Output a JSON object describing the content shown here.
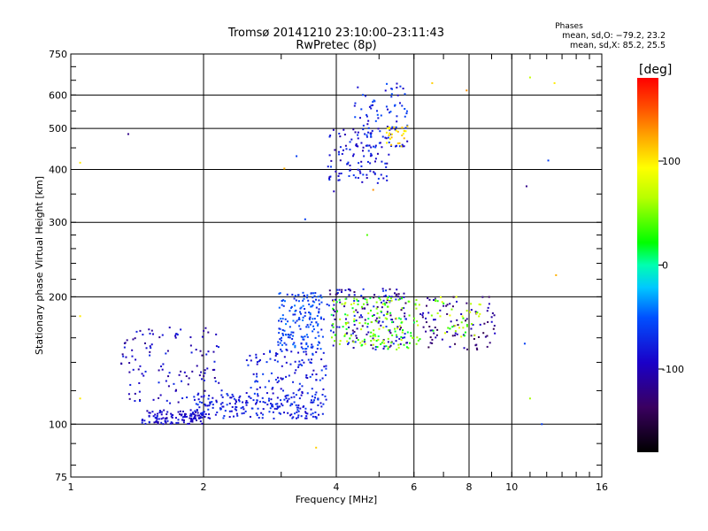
{
  "chart_data": {
    "type": "scatter",
    "title": "Tromsø 20141210 23:10:00–23:11:43",
    "subtitle": "RwPretec (8p)",
    "xlabel": "Frequency [MHz]",
    "ylabel": "Stationary phase Virtual Height [km]",
    "x_scale": "log",
    "y_scale": "log",
    "xlim": [
      1,
      16
    ],
    "ylim": [
      75,
      750
    ],
    "x_ticks": [
      1,
      2,
      4,
      6,
      8,
      10,
      16
    ],
    "y_ticks": [
      75,
      100,
      200,
      300,
      400,
      500,
      600,
      750
    ],
    "grid": true,
    "phase_box": {
      "title": "Phases",
      "line_o": "mean, sd,O: −79.2, 23.2",
      "line_x": "mean, sd,X: 85.2, 25.5"
    },
    "colorbar": {
      "label": "[deg]",
      "range": [
        -180,
        180
      ],
      "ticks": [
        100,
        0,
        -100
      ]
    },
    "clusters": [
      {
        "x": [
          1.45,
          2.0
        ],
        "y": [
          100,
          108
        ],
        "phase": [
          -110,
          -75
        ],
        "n": 120
      },
      {
        "x": [
          1.9,
          3.8
        ],
        "y": [
          103,
          118
        ],
        "phase": [
          -95,
          -60
        ],
        "n": 220
      },
      {
        "x": [
          1.3,
          2.2
        ],
        "y": [
          112,
          170
        ],
        "phase": [
          -120,
          -70
        ],
        "n": 120
      },
      {
        "x": [
          2.5,
          3.8
        ],
        "y": [
          118,
          150
        ],
        "phase": [
          -100,
          -55
        ],
        "n": 110
      },
      {
        "x": [
          2.95,
          3.75
        ],
        "y": [
          150,
          205
        ],
        "phase": [
          -80,
          -40
        ],
        "n": 170
      },
      {
        "x": [
          3.8,
          5.8
        ],
        "y": [
          150,
          210
        ],
        "phase": [
          -140,
          -60
        ],
        "n": 160
      },
      {
        "x": [
          3.9,
          6.2
        ],
        "y": [
          150,
          200
        ],
        "phase": [
          10,
          80
        ],
        "n": 160
      },
      {
        "x": [
          6.2,
          9.3
        ],
        "y": [
          150,
          200
        ],
        "phase": [
          -150,
          -90
        ],
        "n": 90
      },
      {
        "x": [
          6.5,
          8.5
        ],
        "y": [
          160,
          200
        ],
        "phase": [
          20,
          90
        ],
        "n": 40
      },
      {
        "x": [
          3.8,
          5.3
        ],
        "y": [
          370,
          500
        ],
        "phase": [
          -110,
          -60
        ],
        "n": 100
      },
      {
        "x": [
          4.4,
          5.8
        ],
        "y": [
          450,
          640
        ],
        "phase": [
          -100,
          -50
        ],
        "n": 90
      },
      {
        "x": [
          5.2,
          5.8
        ],
        "y": [
          450,
          510
        ],
        "phase": [
          90,
          120
        ],
        "n": 25
      }
    ],
    "outliers": [
      {
        "x": 1.05,
        "y": 415,
        "phase": 100
      },
      {
        "x": 1.05,
        "y": 180,
        "phase": 100
      },
      {
        "x": 1.05,
        "y": 115,
        "phase": 100
      },
      {
        "x": 1.35,
        "y": 485,
        "phase": -120
      },
      {
        "x": 3.05,
        "y": 402,
        "phase": 120
      },
      {
        "x": 3.25,
        "y": 430,
        "phase": -60
      },
      {
        "x": 4.85,
        "y": 358,
        "phase": 130
      },
      {
        "x": 3.95,
        "y": 355,
        "phase": -100
      },
      {
        "x": 3.6,
        "y": 88,
        "phase": 110
      },
      {
        "x": 6.6,
        "y": 640,
        "phase": 110
      },
      {
        "x": 7.9,
        "y": 615,
        "phase": 130
      },
      {
        "x": 11.0,
        "y": 660,
        "phase": 70
      },
      {
        "x": 12.5,
        "y": 640,
        "phase": 100
      },
      {
        "x": 10.8,
        "y": 365,
        "phase": -120
      },
      {
        "x": 12.1,
        "y": 420,
        "phase": -60
      },
      {
        "x": 12.6,
        "y": 225,
        "phase": 120
      },
      {
        "x": 10.7,
        "y": 155,
        "phase": -60
      },
      {
        "x": 11.0,
        "y": 115,
        "phase": 60
      },
      {
        "x": 11.7,
        "y": 100,
        "phase": -60
      },
      {
        "x": 1.4,
        "y": 118,
        "phase": -110
      },
      {
        "x": 3.4,
        "y": 305,
        "phase": -60
      },
      {
        "x": 4.7,
        "y": 280,
        "phase": 40
      }
    ]
  }
}
